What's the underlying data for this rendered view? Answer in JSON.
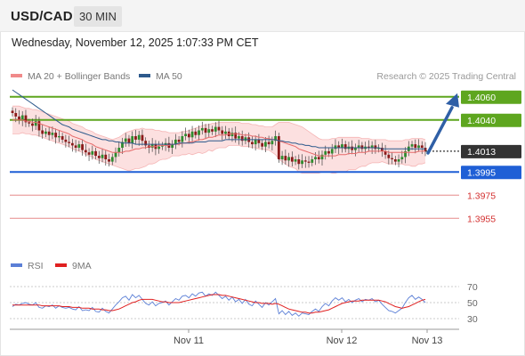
{
  "header": {
    "symbol": "USD/CAD",
    "timeframe": "30 MIN"
  },
  "datetime": "Wednesday, November 12, 2025 1:07:33 PM CET",
  "credit": "Research © 2025 Trading Central",
  "legend_main": [
    {
      "label": "MA 20 + Bollinger Bands",
      "color": "#f08a8a"
    },
    {
      "label": "MA 50",
      "color": "#2d5a8c"
    }
  ],
  "legend_rsi": [
    {
      "label": "RSI",
      "color": "#5b7fd6"
    },
    {
      "label": "9MA",
      "color": "#e02020"
    }
  ],
  "chart_data": [
    {
      "type": "candlestick",
      "x_ticks": [
        "Nov 11",
        "Nov 12",
        "Nov 13"
      ],
      "last_price": {
        "value": 1.4013,
        "label": "1.4013",
        "color": "#333333"
      },
      "levels": [
        {
          "value": 1.406,
          "label": "1.4060",
          "kind": "resistance",
          "color": "#5ea61f"
        },
        {
          "value": 1.404,
          "label": "1.4040",
          "kind": "resistance",
          "color": "#5ea61f"
        },
        {
          "value": 1.3995,
          "label": "1.3995",
          "kind": "pivot",
          "color": "#1f5fd6"
        },
        {
          "value": 1.3975,
          "label": "1.3975",
          "kind": "support",
          "color": "#d32f2f"
        },
        {
          "value": 1.3955,
          "label": "1.3955",
          "kind": "support",
          "color": "#d32f2f"
        }
      ],
      "projection": {
        "from": 1.4013,
        "to": 1.406,
        "color": "#2f5fa6"
      },
      "close": [
        1.4046,
        1.4043,
        1.404,
        1.4044,
        1.4038,
        1.4037,
        1.4035,
        1.4039,
        1.4031,
        1.4028,
        1.403,
        1.4027,
        1.4029,
        1.4025,
        1.4026,
        1.4023,
        1.4021,
        1.402,
        1.4018,
        1.4016,
        1.4019,
        1.4014,
        1.4012,
        1.401,
        1.4013,
        1.4009,
        1.4007,
        1.401,
        1.4006,
        1.4004,
        1.4008,
        1.4012,
        1.4016,
        1.4021,
        1.4024,
        1.402,
        1.4026,
        1.4023,
        1.4027,
        1.4022,
        1.4018,
        1.4016,
        1.4019,
        1.4015,
        1.4017,
        1.4018,
        1.402,
        1.4016,
        1.4019,
        1.4023,
        1.4021,
        1.4026,
        1.4028,
        1.4025,
        1.403,
        1.4027,
        1.4031,
        1.4033,
        1.4029,
        1.4032,
        1.403,
        1.4034,
        1.4031,
        1.4028,
        1.403,
        1.4026,
        1.4029,
        1.4024,
        1.4026,
        1.4022,
        1.4025,
        1.4021,
        1.4019,
        1.4023,
        1.402,
        1.4017,
        1.4021,
        1.4019,
        1.4022,
        1.4026,
        1.4006,
        1.4009,
        1.4005,
        1.4008,
        1.4004,
        1.4006,
        1.4002,
        1.4005,
        1.4004,
        1.4003,
        1.4006,
        1.4008,
        1.4006,
        1.401,
        1.4013,
        1.4011,
        1.4015,
        1.4018,
        1.4016,
        1.4019,
        1.4015,
        1.4017,
        1.4014,
        1.4016,
        1.4018,
        1.4015,
        1.4017,
        1.4016,
        1.4018,
        1.4015,
        1.4016,
        1.4013,
        1.401,
        1.4007,
        1.4006,
        1.4004,
        1.4006,
        1.4008,
        1.4013,
        1.4017,
        1.4019,
        1.4016,
        1.4018,
        1.4016,
        1.4013
      ],
      "ma20": [
        1.404,
        1.404,
        1.404,
        1.404,
        1.4039,
        1.4039,
        1.4038,
        1.4038,
        1.4037,
        1.4036,
        1.4035,
        1.4034,
        1.4033,
        1.4032,
        1.4031,
        1.403,
        1.4029,
        1.4028,
        1.4026,
        1.4025,
        1.4024,
        1.4023,
        1.4021,
        1.402,
        1.4019,
        1.4017,
        1.4016,
        1.4015,
        1.4014,
        1.4013,
        1.4012,
        1.4012,
        1.4012,
        1.4012,
        1.4013,
        1.4013,
        1.4014,
        1.4015,
        1.4015,
        1.4016,
        1.4016,
        1.4017,
        1.4017,
        1.4017,
        1.4018,
        1.4018,
        1.4018,
        1.4018,
        1.4019,
        1.4019,
        1.4019,
        1.402,
        1.402,
        1.4021,
        1.4021,
        1.4022,
        1.4023,
        1.4023,
        1.4024,
        1.4025,
        1.4025,
        1.4026,
        1.4027,
        1.4027,
        1.4027,
        1.4028,
        1.4028,
        1.4028,
        1.4028,
        1.4027,
        1.4027,
        1.4027,
        1.4026,
        1.4026,
        1.4025,
        1.4025,
        1.4024,
        1.4024,
        1.4023,
        1.4023,
        1.4022,
        1.4021,
        1.402,
        1.4019,
        1.4018,
        1.4017,
        1.4015,
        1.4014,
        1.4013,
        1.4012,
        1.4011,
        1.401,
        1.4009,
        1.4009,
        1.4009,
        1.4009,
        1.4009,
        1.4009,
        1.401,
        1.401,
        1.401,
        1.4011,
        1.4011,
        1.4011,
        1.4012,
        1.4012,
        1.4012,
        1.4013,
        1.4013,
        1.4013,
        1.4013,
        1.4013,
        1.4013,
        1.4012,
        1.4012,
        1.4012,
        1.4012,
        1.4012,
        1.4012,
        1.4012,
        1.4012,
        1.4012,
        1.4013,
        1.4013,
        1.4013
      ],
      "bb_upper": [
        1.4052,
        1.4052,
        1.4052,
        1.4051,
        1.405,
        1.405,
        1.4049,
        1.4049,
        1.4048,
        1.4047,
        1.4046,
        1.4045,
        1.4044,
        1.4043,
        1.4042,
        1.4041,
        1.404,
        1.4039,
        1.4037,
        1.4036,
        1.4035,
        1.4034,
        1.4032,
        1.4031,
        1.403,
        1.4028,
        1.4027,
        1.4026,
        1.4025,
        1.4024,
        1.4023,
        1.4024,
        1.4025,
        1.4027,
        1.4029,
        1.403,
        1.4031,
        1.4032,
        1.4032,
        1.4033,
        1.4032,
        1.4032,
        1.4032,
        1.4031,
        1.4031,
        1.403,
        1.403,
        1.4029,
        1.4029,
        1.4029,
        1.4029,
        1.403,
        1.403,
        1.4031,
        1.4032,
        1.4033,
        1.4034,
        1.4035,
        1.4036,
        1.4036,
        1.4037,
        1.4037,
        1.4038,
        1.4038,
        1.4038,
        1.4038,
        1.4038,
        1.4038,
        1.4038,
        1.4037,
        1.4037,
        1.4037,
        1.4036,
        1.4036,
        1.4035,
        1.4035,
        1.4034,
        1.4034,
        1.4034,
        1.4036,
        1.4038,
        1.4038,
        1.4038,
        1.4038,
        1.4037,
        1.4036,
        1.4035,
        1.4034,
        1.4032,
        1.403,
        1.4028,
        1.4026,
        1.4024,
        1.4023,
        1.4023,
        1.4023,
        1.4024,
        1.4024,
        1.4025,
        1.4025,
        1.4025,
        1.4025,
        1.4025,
        1.4025,
        1.4025,
        1.4024,
        1.4024,
        1.4024,
        1.4023,
        1.4023,
        1.4023,
        1.4023,
        1.4023,
        1.4022,
        1.4022,
        1.4022,
        1.4022,
        1.4022,
        1.4023,
        1.4023,
        1.4024,
        1.4024,
        1.4024,
        1.4024,
        1.4023
      ],
      "bb_lower": [
        1.4028,
        1.4028,
        1.4028,
        1.4029,
        1.4028,
        1.4028,
        1.4027,
        1.4027,
        1.4026,
        1.4025,
        1.4024,
        1.4023,
        1.4022,
        1.4021,
        1.402,
        1.4019,
        1.4018,
        1.4017,
        1.4015,
        1.4014,
        1.4013,
        1.4012,
        1.401,
        1.4009,
        1.4008,
        1.4006,
        1.4005,
        1.4004,
        1.4003,
        1.4002,
        1.4001,
        1.4,
        1.3999,
        1.3998,
        1.3997,
        1.3996,
        1.3997,
        1.3998,
        1.3998,
        1.3999,
        1.4,
        1.4002,
        1.4002,
        1.4003,
        1.4005,
        1.4006,
        1.4006,
        1.4007,
        1.4009,
        1.4009,
        1.4009,
        1.401,
        1.401,
        1.4011,
        1.401,
        1.4011,
        1.4012,
        1.4011,
        1.4012,
        1.4014,
        1.4013,
        1.4015,
        1.4016,
        1.4016,
        1.4016,
        1.4018,
        1.4018,
        1.4018,
        1.4018,
        1.4017,
        1.4017,
        1.4017,
        1.4016,
        1.4016,
        1.4015,
        1.4015,
        1.4014,
        1.4014,
        1.4012,
        1.401,
        1.4006,
        1.4004,
        1.4002,
        1.4,
        1.3999,
        1.3998,
        1.3995,
        1.3994,
        1.3994,
        1.3994,
        1.3994,
        1.3994,
        1.3994,
        1.3995,
        1.3995,
        1.3995,
        1.3994,
        1.3994,
        1.3995,
        1.3995,
        1.3995,
        1.3997,
        1.3997,
        1.3997,
        1.3999,
        1.4,
        1.4,
        1.4002,
        1.4003,
        1.4003,
        1.4003,
        1.4004,
        1.4003,
        1.4002,
        1.4002,
        1.4002,
        1.4002,
        1.4002,
        1.4001,
        1.4001,
        1.4,
        1.4,
        1.4002,
        1.4002,
        1.4003
      ],
      "ma50": [
        1.4066,
        1.4064,
        1.4062,
        1.406,
        1.4058,
        1.4056,
        1.4054,
        1.4052,
        1.405,
        1.4048,
        1.4046,
        1.4044,
        1.4042,
        1.404,
        1.4038,
        1.4036,
        1.4035,
        1.4034,
        1.4032,
        1.4031,
        1.403,
        1.4029,
        1.4028,
        1.4027,
        1.4026,
        1.4025,
        1.4024,
        1.4023,
        1.4023,
        1.4022,
        1.4022,
        1.4021,
        1.4021,
        1.402,
        1.402,
        1.402,
        1.402,
        1.4019,
        1.4019,
        1.4019,
        1.4019,
        1.4019,
        1.4019,
        1.4019,
        1.4019,
        1.4019,
        1.4019,
        1.4019,
        1.4019,
        1.4019,
        1.402,
        1.402,
        1.402,
        1.402,
        1.402,
        1.4021,
        1.4021,
        1.4021,
        1.4021,
        1.4022,
        1.4022,
        1.4022,
        1.4022,
        1.4022,
        1.4023,
        1.4023,
        1.4023,
        1.4023,
        1.4023,
        1.4023,
        1.4023,
        1.4023,
        1.4023,
        1.4023,
        1.4023,
        1.4023,
        1.4023,
        1.4023,
        1.4023,
        1.4023,
        1.4022,
        1.4022,
        1.4021,
        1.4021,
        1.402,
        1.402,
        1.4019,
        1.4019,
        1.4018,
        1.4018,
        1.4017,
        1.4017,
        1.4016,
        1.4016,
        1.4016,
        1.4016,
        1.4016,
        1.4016,
        1.4016,
        1.4016,
        1.4016,
        1.4016,
        1.4016,
        1.4016,
        1.4016,
        1.4016,
        1.4016,
        1.4016,
        1.4016,
        1.4016,
        1.4016,
        1.4015,
        1.4015,
        1.4015,
        1.4015,
        1.4015,
        1.4015,
        1.4015,
        1.4015,
        1.4015,
        1.4015,
        1.4015,
        1.4015,
        1.4015,
        1.4015
      ]
    },
    {
      "type": "line",
      "title": "RSI",
      "y_ticks": [
        70,
        50,
        30
      ],
      "ylim": [
        20,
        80
      ],
      "series": [
        {
          "name": "RSI",
          "color": "#5b7fd6",
          "values": [
            45,
            48,
            47,
            49,
            50,
            48,
            47,
            50,
            44,
            43,
            46,
            45,
            47,
            43,
            46,
            44,
            43,
            44,
            42,
            41,
            45,
            40,
            41,
            40,
            44,
            39,
            38,
            43,
            39,
            37,
            42,
            47,
            51,
            56,
            58,
            53,
            60,
            56,
            59,
            54,
            49,
            47,
            51,
            46,
            49,
            50,
            52,
            47,
            51,
            55,
            53,
            58,
            59,
            56,
            61,
            58,
            62,
            63,
            58,
            61,
            59,
            63,
            59,
            55,
            58,
            53,
            57,
            51,
            54,
            49,
            54,
            48,
            46,
            52,
            48,
            44,
            50,
            47,
            51,
            55,
            36,
            40,
            35,
            39,
            34,
            37,
            33,
            37,
            36,
            35,
            39,
            42,
            39,
            45,
            49,
            46,
            52,
            56,
            53,
            56,
            51,
            54,
            50,
            53,
            55,
            51,
            54,
            53,
            55,
            51,
            53,
            48,
            44,
            40,
            39,
            37,
            40,
            43,
            50,
            56,
            59,
            54,
            57,
            54,
            50
          ]
        },
        {
          "name": "9MA",
          "color": "#e02020",
          "values": [
            47,
            47,
            47,
            47,
            47,
            47,
            47,
            47,
            47,
            46,
            46,
            46,
            46,
            46,
            46,
            45,
            45,
            45,
            44,
            44,
            44,
            43,
            43,
            43,
            42,
            42,
            42,
            41,
            41,
            40,
            40,
            41,
            42,
            44,
            46,
            48,
            50,
            51,
            53,
            54,
            54,
            54,
            54,
            53,
            52,
            51,
            51,
            50,
            50,
            50,
            50,
            51,
            52,
            53,
            54,
            55,
            56,
            57,
            58,
            59,
            60,
            60,
            60,
            59,
            59,
            58,
            57,
            56,
            55,
            54,
            53,
            52,
            51,
            50,
            50,
            49,
            49,
            49,
            48,
            49,
            48,
            46,
            44,
            42,
            41,
            40,
            39,
            38,
            38,
            37,
            37,
            38,
            38,
            39,
            40,
            41,
            43,
            45,
            47,
            49,
            50,
            51,
            52,
            52,
            52,
            53,
            53,
            53,
            53,
            53,
            53,
            52,
            51,
            49,
            47,
            45,
            44,
            43,
            44,
            45,
            47,
            49,
            51,
            53,
            54
          ]
        }
      ]
    }
  ]
}
